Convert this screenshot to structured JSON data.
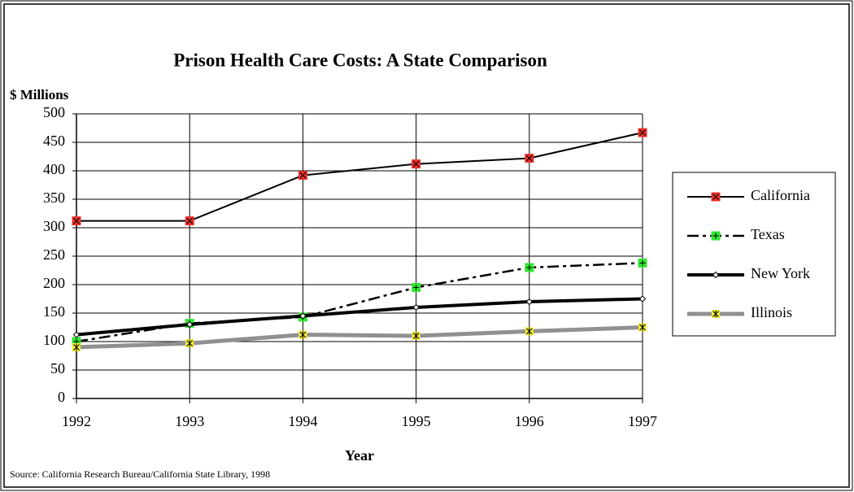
{
  "chart_data": {
    "type": "line",
    "title": "Prison Health Care Costs:  A State Comparison",
    "y_label": "$ Millions",
    "x_label": "Year",
    "source": "Source: California Research Bureau/California State Library, 1998",
    "x": [
      1992,
      1993,
      1994,
      1995,
      1996,
      1997
    ],
    "xlim": [
      1992,
      1997
    ],
    "xticks": [
      1992,
      1993,
      1994,
      1995,
      1996,
      1997
    ],
    "ylim": [
      0,
      500
    ],
    "yticks": [
      0,
      50,
      100,
      150,
      200,
      250,
      300,
      350,
      400,
      450,
      500
    ],
    "grid": true,
    "legend": "right",
    "series": [
      {
        "name": "California",
        "color": "#e8302c",
        "values": [
          312,
          312,
          392,
          412,
          422,
          467
        ]
      },
      {
        "name": "Texas",
        "color": "#33e633",
        "values": [
          100,
          132,
          143,
          195,
          230,
          238
        ]
      },
      {
        "name": "New York",
        "color": "#ffffff",
        "values": [
          112,
          130,
          145,
          160,
          170,
          175
        ]
      },
      {
        "name": "Illinois",
        "color": "#f5f032",
        "values": [
          90,
          97,
          112,
          110,
          118,
          125
        ]
      }
    ]
  }
}
